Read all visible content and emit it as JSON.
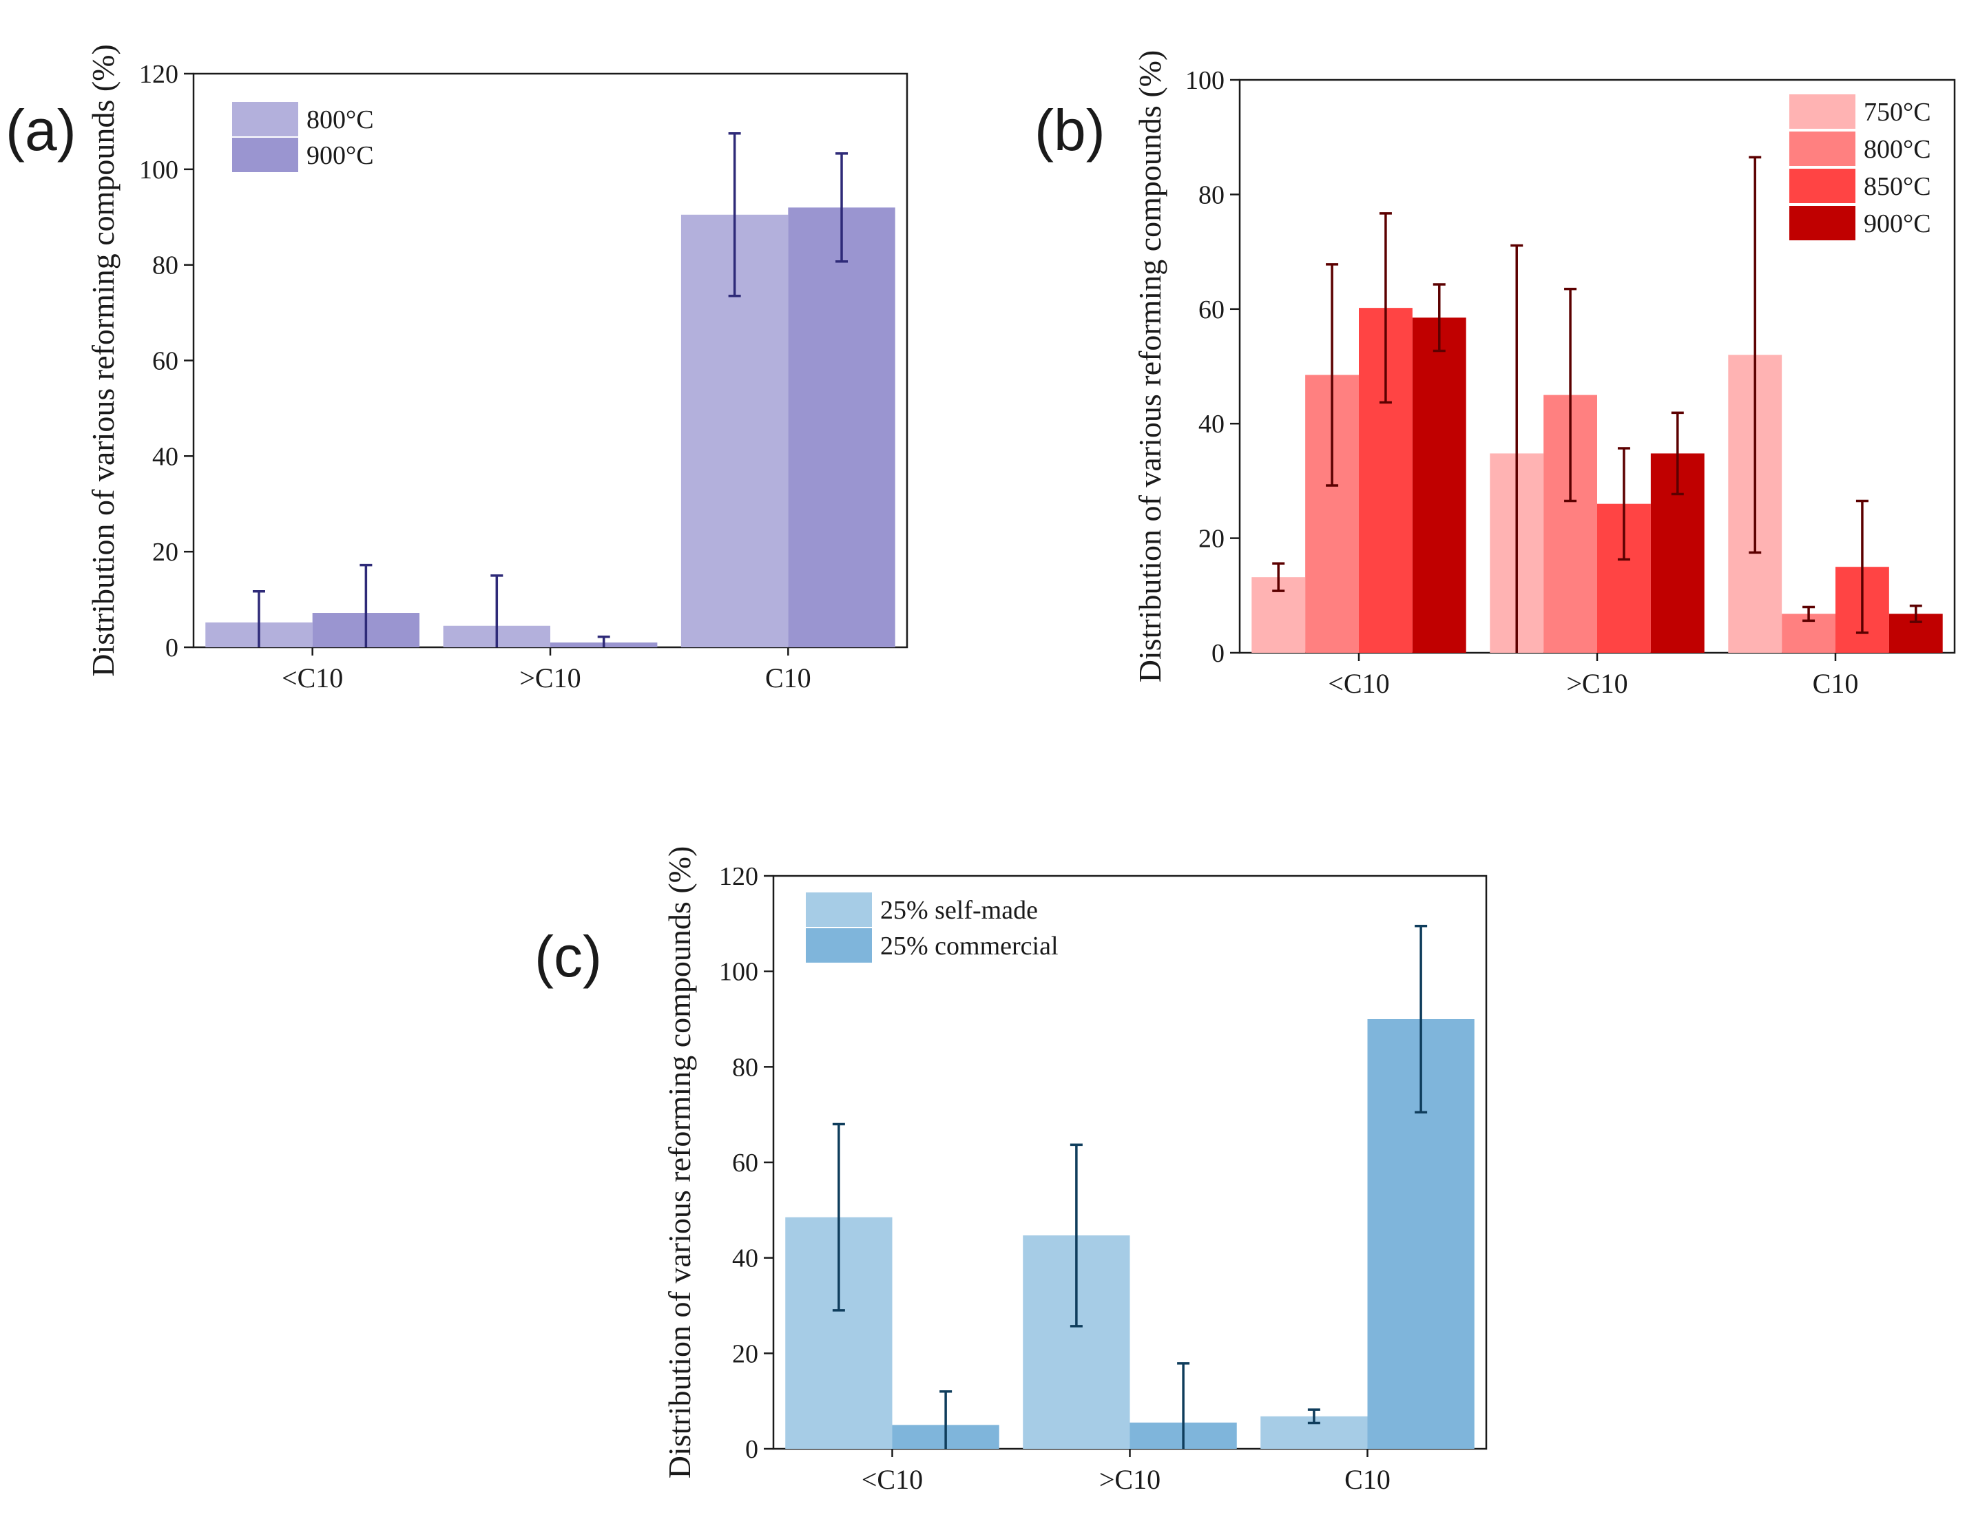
{
  "figure": {
    "description_labels": [
      "(a)",
      "(b)",
      "(c)"
    ]
  },
  "chart_data": [
    {
      "id": "a",
      "type": "bar",
      "panel_label": "(a)",
      "title": "",
      "xlabel": "",
      "ylabel": "Distribution of various reforming compounds (%)",
      "ylim": [
        0,
        120
      ],
      "yticks": [
        0,
        20,
        40,
        60,
        80,
        100,
        120
      ],
      "categories": [
        "<C10",
        ">C10",
        "C10"
      ],
      "legend_position": "top-left",
      "series": [
        {
          "name": "800°C",
          "color": "#b3b0dc",
          "errcolor": "#2e2a78",
          "values": [
            5.2,
            4.5,
            90.5
          ],
          "err": [
            6.5,
            10.5,
            17.0
          ]
        },
        {
          "name": "900°C",
          "color": "#9a95d0",
          "errcolor": "#2e2a78",
          "values": [
            7.2,
            1.0,
            92.0
          ],
          "err": [
            10.0,
            1.2,
            11.3
          ]
        }
      ]
    },
    {
      "id": "b",
      "type": "bar",
      "panel_label": "(b)",
      "title": "",
      "xlabel": "",
      "ylabel": "Distribution of various reforming compounds (%)",
      "ylim": [
        0,
        100
      ],
      "yticks": [
        0,
        20,
        40,
        60,
        80,
        100
      ],
      "categories": [
        "<C10",
        ">C10",
        "C10"
      ],
      "legend_position": "top-right",
      "series": [
        {
          "name": "750°C",
          "color": "#ffb3b3",
          "errcolor": "#5c0000",
          "values": [
            13.2,
            34.8,
            52.0
          ],
          "err": [
            2.4,
            36.3,
            34.5
          ]
        },
        {
          "name": "800°C",
          "color": "#ff8080",
          "errcolor": "#5c0000",
          "values": [
            48.5,
            45.0,
            6.8
          ],
          "err": [
            19.3,
            18.5,
            1.2
          ]
        },
        {
          "name": "850°C",
          "color": "#ff4444",
          "errcolor": "#5c0000",
          "values": [
            60.2,
            26.0,
            15.0
          ],
          "err": [
            16.5,
            9.7,
            11.5
          ]
        },
        {
          "name": "900°C",
          "color": "#c00000",
          "errcolor": "#5c0000",
          "values": [
            58.5,
            34.8,
            6.8
          ],
          "err": [
            5.8,
            7.1,
            1.4
          ]
        }
      ]
    },
    {
      "id": "c",
      "type": "bar",
      "panel_label": "(c)",
      "title": "",
      "xlabel": "",
      "ylabel": "Distribution of various reforming compounds (%)",
      "ylim": [
        0,
        120
      ],
      "yticks": [
        0,
        20,
        40,
        60,
        80,
        100,
        120
      ],
      "categories": [
        "<C10",
        ">C10",
        "C10"
      ],
      "legend_position": "top-left",
      "series": [
        {
          "name": "25% self-made",
          "color": "#a6cce6",
          "errcolor": "#0f3d5c",
          "values": [
            48.5,
            44.7,
            6.8
          ],
          "err": [
            19.5,
            19.0,
            1.4
          ]
        },
        {
          "name": "25% commercial",
          "color": "#7fb5db",
          "errcolor": "#0f3d5c",
          "values": [
            5.0,
            5.5,
            90.0
          ],
          "err": [
            7.0,
            12.4,
            19.5
          ]
        }
      ]
    }
  ]
}
